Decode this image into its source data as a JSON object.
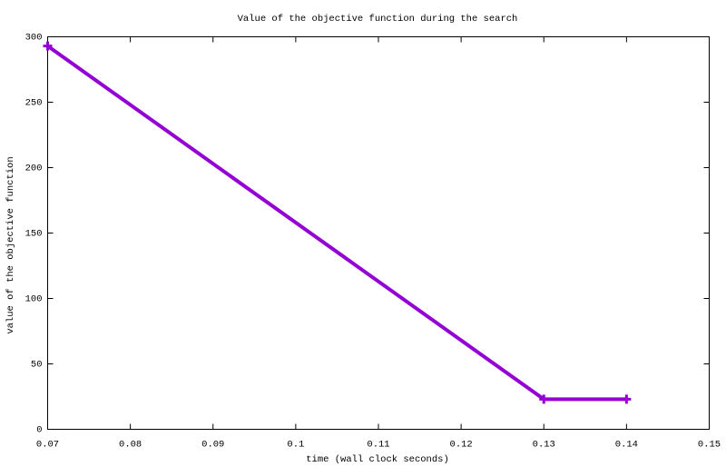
{
  "chart_data": {
    "type": "line",
    "title": "Value of the objective function during the search",
    "x_label": "time (wall clock seconds)",
    "y_label": "value of the objective function",
    "x": [
      0.07,
      0.13,
      0.14
    ],
    "values": [
      293,
      23,
      23
    ],
    "color": "#9400d3",
    "xlim": [
      0.07,
      0.15
    ],
    "xticks": [
      0.07,
      0.08,
      0.09,
      0.1,
      0.11,
      0.12,
      0.13,
      0.14,
      0.15
    ],
    "ylim": [
      0,
      300
    ],
    "yticks": [
      0,
      50,
      100,
      150,
      200,
      250,
      300
    ]
  }
}
